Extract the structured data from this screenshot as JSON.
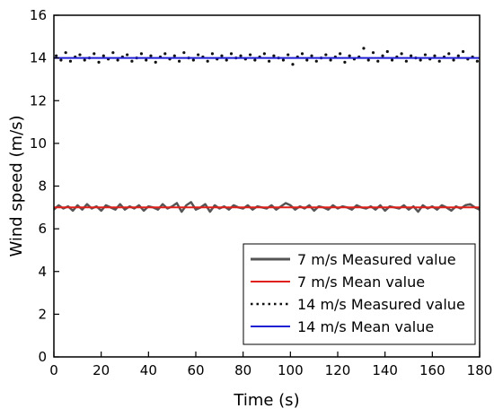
{
  "chart_data": {
    "type": "line",
    "title": "",
    "xlabel": "Time (s)",
    "ylabel": "Wind speed (m/s)",
    "xlim": [
      0,
      180
    ],
    "ylim": [
      0,
      16
    ],
    "xticks": [
      0,
      20,
      40,
      60,
      80,
      100,
      120,
      140,
      160,
      180
    ],
    "yticks": [
      0,
      2,
      4,
      6,
      8,
      10,
      12,
      14,
      16
    ],
    "grid": false,
    "legend_position": "bottom-right",
    "series": [
      {
        "name": "7 m/s Measured value",
        "style": "line",
        "color": "#555555",
        "x": [
          0,
          2,
          4,
          6,
          8,
          10,
          12,
          14,
          16,
          18,
          20,
          22,
          24,
          26,
          28,
          30,
          32,
          34,
          36,
          38,
          40,
          42,
          44,
          46,
          48,
          50,
          52,
          54,
          56,
          58,
          60,
          62,
          64,
          66,
          68,
          70,
          72,
          74,
          76,
          78,
          80,
          82,
          84,
          86,
          88,
          90,
          92,
          94,
          96,
          98,
          100,
          102,
          104,
          106,
          108,
          110,
          112,
          114,
          116,
          118,
          120,
          122,
          124,
          126,
          128,
          130,
          132,
          134,
          136,
          138,
          140,
          142,
          144,
          146,
          148,
          150,
          152,
          154,
          156,
          158,
          160,
          162,
          164,
          166,
          168,
          170,
          172,
          174,
          176,
          178,
          180
        ],
        "y": [
          6.9,
          7.1,
          6.95,
          7.05,
          6.85,
          7.1,
          6.9,
          7.15,
          6.95,
          7.05,
          6.85,
          7.1,
          7.0,
          6.9,
          7.15,
          6.9,
          7.05,
          6.95,
          7.1,
          6.85,
          7.05,
          7.0,
          6.9,
          7.15,
          6.95,
          7.05,
          7.2,
          6.8,
          7.1,
          7.25,
          6.9,
          7.0,
          7.15,
          6.8,
          7.1,
          6.95,
          7.05,
          6.9,
          7.1,
          7.0,
          6.95,
          7.1,
          6.9,
          7.05,
          7.0,
          6.95,
          7.1,
          6.9,
          7.05,
          7.2,
          7.1,
          6.9,
          7.05,
          6.95,
          7.1,
          6.85,
          7.05,
          7.0,
          6.9,
          7.1,
          6.95,
          7.05,
          7.0,
          6.9,
          7.1,
          7.0,
          6.95,
          7.05,
          6.9,
          7.1,
          6.85,
          7.05,
          7.0,
          6.95,
          7.1,
          6.9,
          7.05,
          6.8,
          7.1,
          6.95,
          7.05,
          6.9,
          7.1,
          7.0,
          6.85,
          7.05,
          6.95,
          7.1,
          7.15,
          7.0,
          6.9
        ]
      },
      {
        "name": "7 m/s Mean value",
        "style": "line",
        "color": "#e0201a",
        "x": [
          0,
          180
        ],
        "y": [
          7.0,
          7.0
        ]
      },
      {
        "name": "14 m/s Measured value",
        "style": "dots",
        "color": "#111111",
        "x": [
          1,
          3,
          5,
          7,
          9,
          11,
          13,
          15,
          17,
          19,
          21,
          23,
          25,
          27,
          29,
          31,
          33,
          35,
          37,
          39,
          41,
          43,
          45,
          47,
          49,
          51,
          53,
          55,
          57,
          59,
          61,
          63,
          65,
          67,
          69,
          71,
          73,
          75,
          77,
          79,
          81,
          83,
          85,
          87,
          89,
          91,
          93,
          95,
          97,
          99,
          101,
          103,
          105,
          107,
          109,
          111,
          113,
          115,
          117,
          119,
          121,
          123,
          125,
          127,
          129,
          131,
          133,
          135,
          137,
          139,
          141,
          143,
          145,
          147,
          149,
          151,
          153,
          155,
          157,
          159,
          161,
          163,
          165,
          167,
          169,
          171,
          173,
          175,
          177,
          179
        ],
        "y": [
          14.1,
          13.9,
          14.25,
          13.85,
          14.05,
          14.15,
          13.9,
          14.0,
          14.2,
          13.8,
          14.1,
          13.95,
          14.25,
          13.9,
          14.05,
          14.15,
          13.85,
          14.0,
          14.2,
          13.9,
          14.1,
          13.8,
          14.05,
          14.2,
          13.95,
          14.1,
          13.85,
          14.25,
          14.0,
          13.9,
          14.15,
          14.05,
          13.85,
          14.2,
          13.95,
          14.1,
          13.9,
          14.2,
          14.0,
          14.1,
          13.95,
          14.15,
          13.9,
          14.05,
          14.2,
          13.85,
          14.1,
          14.0,
          13.9,
          14.15,
          13.7,
          14.05,
          14.2,
          13.9,
          14.1,
          13.85,
          14.0,
          14.15,
          13.9,
          14.05,
          14.2,
          13.8,
          14.1,
          13.95,
          14.05,
          14.45,
          13.9,
          14.25,
          13.85,
          14.1,
          14.3,
          13.9,
          14.05,
          14.2,
          13.85,
          14.1,
          14.0,
          13.9,
          14.15,
          13.95,
          14.1,
          13.85,
          14.05,
          14.2,
          13.9,
          14.1,
          14.3,
          13.95,
          14.05,
          13.85
        ]
      },
      {
        "name": "14 m/s Mean value",
        "style": "line",
        "color": "#1f1fd6",
        "x": [
          0,
          180
        ],
        "y": [
          14.0,
          14.0
        ]
      }
    ]
  }
}
